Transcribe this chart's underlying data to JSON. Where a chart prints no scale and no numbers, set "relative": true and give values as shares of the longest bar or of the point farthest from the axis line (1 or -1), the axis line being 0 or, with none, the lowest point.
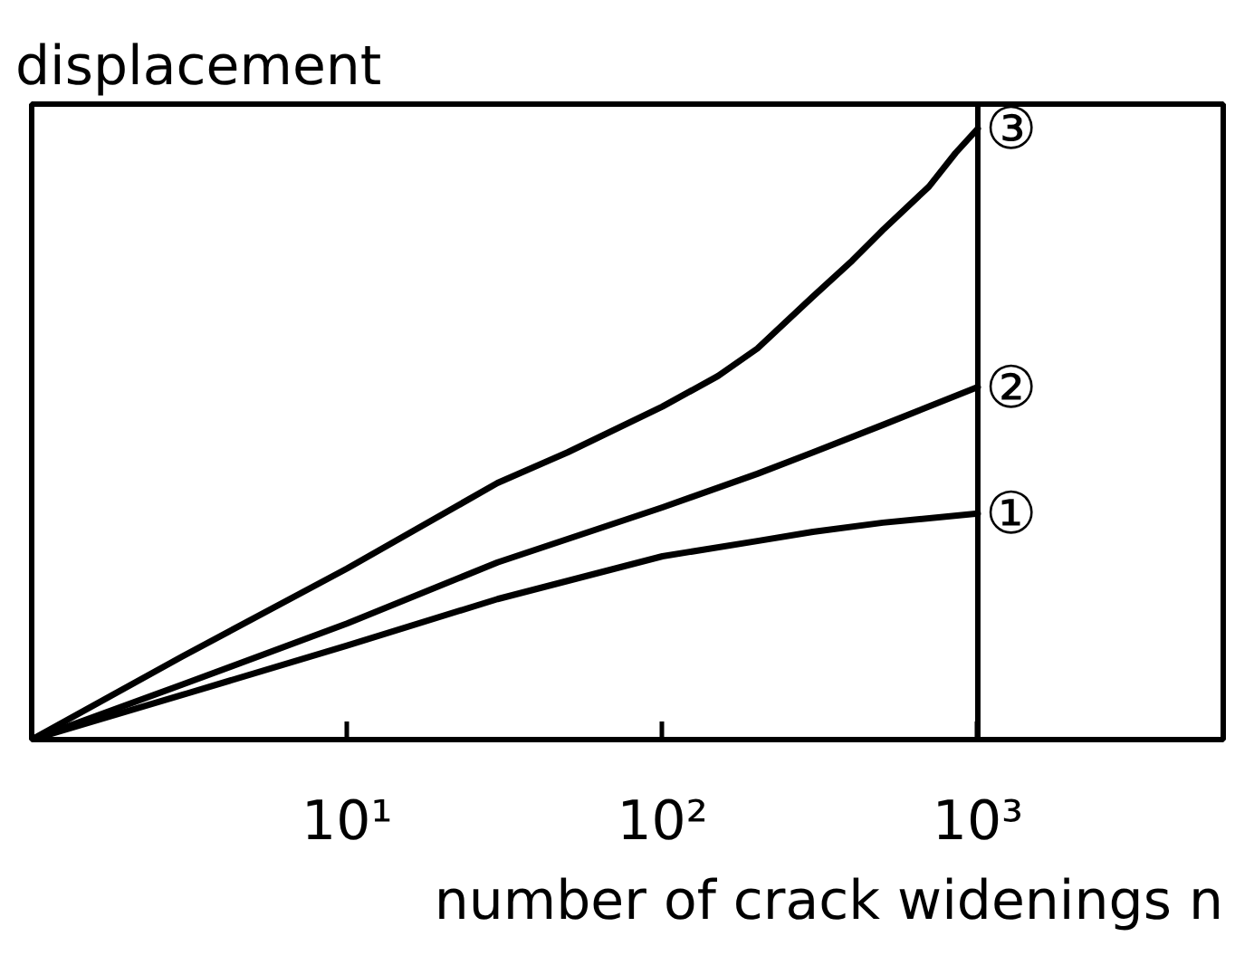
{
  "chart_data": {
    "type": "line",
    "xlabel": "number of crack widenings n",
    "ylabel": "displacement",
    "log": "x",
    "relative": true,
    "xlim": [
      1,
      6000
    ],
    "xticks": [
      {
        "value": 10,
        "label": "10¹"
      },
      {
        "value": 100,
        "label": "10²"
      },
      {
        "value": 1000,
        "label": "10³"
      }
    ],
    "ref_lines": [
      {
        "axis": "x",
        "value": 1000
      }
    ],
    "series": [
      {
        "name": "①",
        "color": "#000000",
        "x": [
          1,
          3,
          10,
          30,
          100,
          200,
          300,
          500,
          1000
        ],
        "values": [
          0,
          0.073,
          0.154,
          0.23,
          0.3,
          0.325,
          0.34,
          0.355,
          0.37
        ]
      },
      {
        "name": "②",
        "color": "#000000",
        "x": [
          1,
          3,
          10,
          30,
          100,
          200,
          300,
          500,
          1000
        ],
        "values": [
          0,
          0.09,
          0.19,
          0.29,
          0.38,
          0.435,
          0.47,
          0.515,
          0.577
        ]
      },
      {
        "name": "③",
        "color": "#000000",
        "x": [
          1,
          3,
          10,
          30,
          50,
          100,
          150,
          200,
          300,
          400,
          500,
          700,
          850,
          1000
        ],
        "values": [
          0,
          0.136,
          0.28,
          0.42,
          0.47,
          0.545,
          0.595,
          0.64,
          0.725,
          0.784,
          0.834,
          0.905,
          0.96,
          1.0
        ]
      }
    ]
  }
}
